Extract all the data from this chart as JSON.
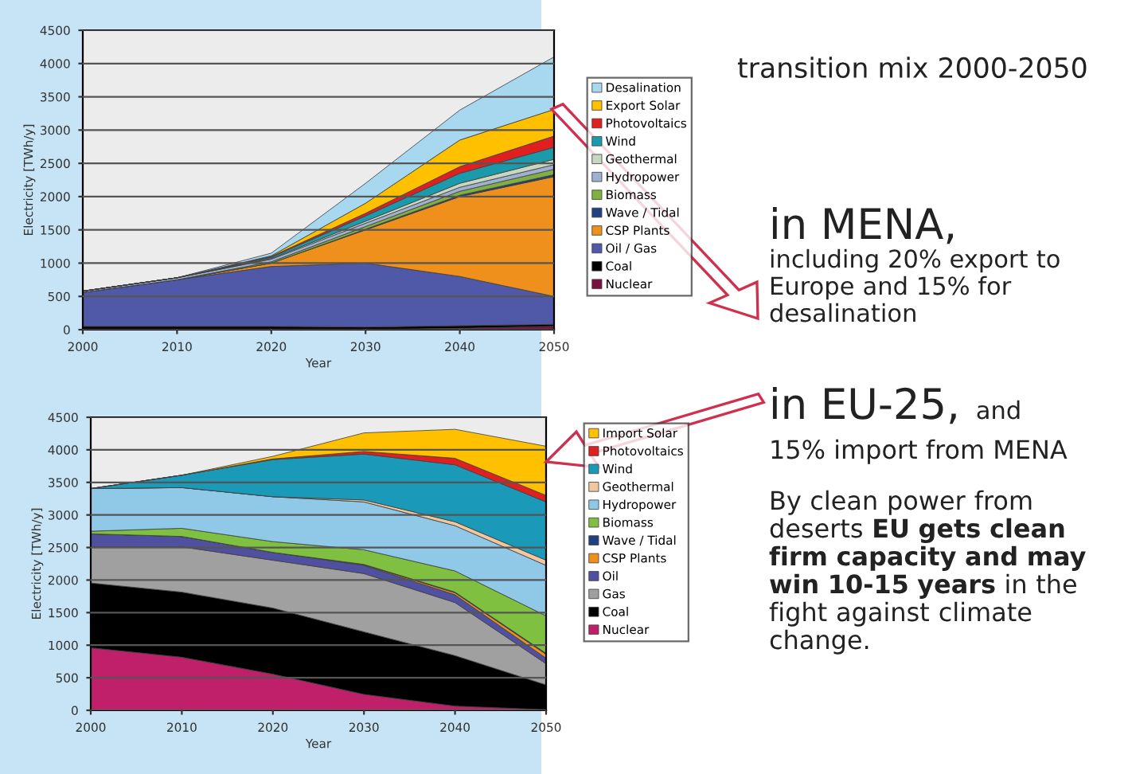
{
  "chart_data": [
    {
      "type": "area",
      "stacked": true,
      "xlabel": "Year",
      "ylabel": "Electricity [TWh/y]",
      "x": [
        2000,
        2010,
        2020,
        2030,
        2040,
        2050
      ],
      "xlim": [
        2000,
        2050
      ],
      "xticks": [
        2000,
        2010,
        2020,
        2030,
        2040,
        2050
      ],
      "ylim": [
        0,
        4500
      ],
      "yticks": [
        0,
        500,
        1000,
        1500,
        2000,
        2500,
        3000,
        3500,
        4000,
        4500
      ],
      "grid": "y",
      "legend": "right",
      "series": [
        {
          "name": "Nuclear",
          "color": "#7a1040",
          "values": [
            0,
            0,
            0,
            0,
            20,
            50
          ]
        },
        {
          "name": "Coal",
          "color": "#000000",
          "values": [
            50,
            50,
            50,
            40,
            40,
            30
          ]
        },
        {
          "name": "Oil / Gas",
          "color": "#5058a8",
          "values": [
            510,
            700,
            900,
            960,
            740,
            420
          ]
        },
        {
          "name": "CSP Plants",
          "color": "#f0901c",
          "values": [
            0,
            0,
            50,
            500,
            1200,
            1800
          ]
        },
        {
          "name": "Wave / Tidal",
          "color": "#204080",
          "values": [
            0,
            0,
            0,
            10,
            20,
            30
          ]
        },
        {
          "name": "Biomass",
          "color": "#80b040",
          "values": [
            0,
            0,
            20,
            40,
            60,
            80
          ]
        },
        {
          "name": "Hydropower",
          "color": "#a0b0d0",
          "values": [
            20,
            30,
            40,
            50,
            60,
            70
          ]
        },
        {
          "name": "Geothermal",
          "color": "#c8d8c0",
          "values": [
            0,
            0,
            10,
            30,
            60,
            80
          ]
        },
        {
          "name": "Wind",
          "color": "#1a9aaa",
          "values": [
            0,
            0,
            20,
            80,
            150,
            180
          ]
        },
        {
          "name": "Photovoltaics",
          "color": "#e02020",
          "values": [
            0,
            0,
            10,
            40,
            100,
            170
          ]
        },
        {
          "name": "Export Solar",
          "color": "#ffc000",
          "values": [
            0,
            0,
            10,
            150,
            400,
            400
          ]
        },
        {
          "name": "Desalination",
          "color": "#a8d8f0",
          "values": [
            0,
            0,
            40,
            300,
            450,
            790
          ]
        }
      ]
    },
    {
      "type": "area",
      "stacked": true,
      "xlabel": "Year",
      "ylabel": "Electricity [TWh/y]",
      "x": [
        2000,
        2010,
        2020,
        2030,
        2040,
        2050
      ],
      "xlim": [
        2000,
        2050
      ],
      "xticks": [
        2000,
        2010,
        2020,
        2030,
        2040,
        2050
      ],
      "ylim": [
        0,
        4500
      ],
      "yticks": [
        0,
        500,
        1000,
        1500,
        2000,
        2500,
        3000,
        3500,
        4000,
        4500
      ],
      "grid": "y",
      "legend": "right",
      "series": [
        {
          "name": "Nuclear",
          "color": "#c0206a",
          "values": [
            960,
            815,
            555,
            245,
            65,
            10
          ]
        },
        {
          "name": "Coal",
          "color": "#000000",
          "values": [
            995,
            1000,
            1015,
            960,
            775,
            380
          ]
        },
        {
          "name": "Gas",
          "color": "#a0a0a0",
          "values": [
            555,
            695,
            735,
            895,
            815,
            325
          ]
        },
        {
          "name": "Oil",
          "color": "#5050a0",
          "values": [
            200,
            160,
            120,
            125,
            120,
            85
          ]
        },
        {
          "name": "CSP Plants",
          "color": "#f0901c",
          "values": [
            0,
            0,
            0,
            10,
            30,
            60
          ]
        },
        {
          "name": "Wave / Tidal",
          "color": "#204080",
          "values": [
            0,
            0,
            0,
            5,
            10,
            15
          ]
        },
        {
          "name": "Biomass",
          "color": "#80c040",
          "values": [
            40,
            125,
            165,
            225,
            325,
            575
          ]
        },
        {
          "name": "Hydropower",
          "color": "#90c8e8",
          "values": [
            655,
            625,
            690,
            735,
            695,
            775
          ]
        },
        {
          "name": "Geothermal",
          "color": "#f0c8a0",
          "values": [
            0,
            0,
            0,
            30,
            60,
            80
          ]
        },
        {
          "name": "Wind",
          "color": "#1a9ab8",
          "values": [
            0,
            190,
            570,
            705,
            875,
            895
          ]
        },
        {
          "name": "Photovoltaics",
          "color": "#e02020",
          "values": [
            0,
            0,
            10,
            40,
            100,
            100
          ]
        },
        {
          "name": "Import Solar",
          "color": "#ffc000",
          "values": [
            0,
            0,
            40,
            285,
            445,
            755
          ]
        }
      ]
    },
    {
      "type": "other",
      "title": "transition mix 2000-2050",
      "annotations": [
        "in MENA,",
        "including 20% export to Europe and 15% for desalination",
        "in EU-25,",
        "and",
        "15% import from MENA",
        "By clean power from deserts",
        "EU gets clean firm capacity and may win 10-15 years",
        "in the fight against climate change."
      ]
    }
  ]
}
